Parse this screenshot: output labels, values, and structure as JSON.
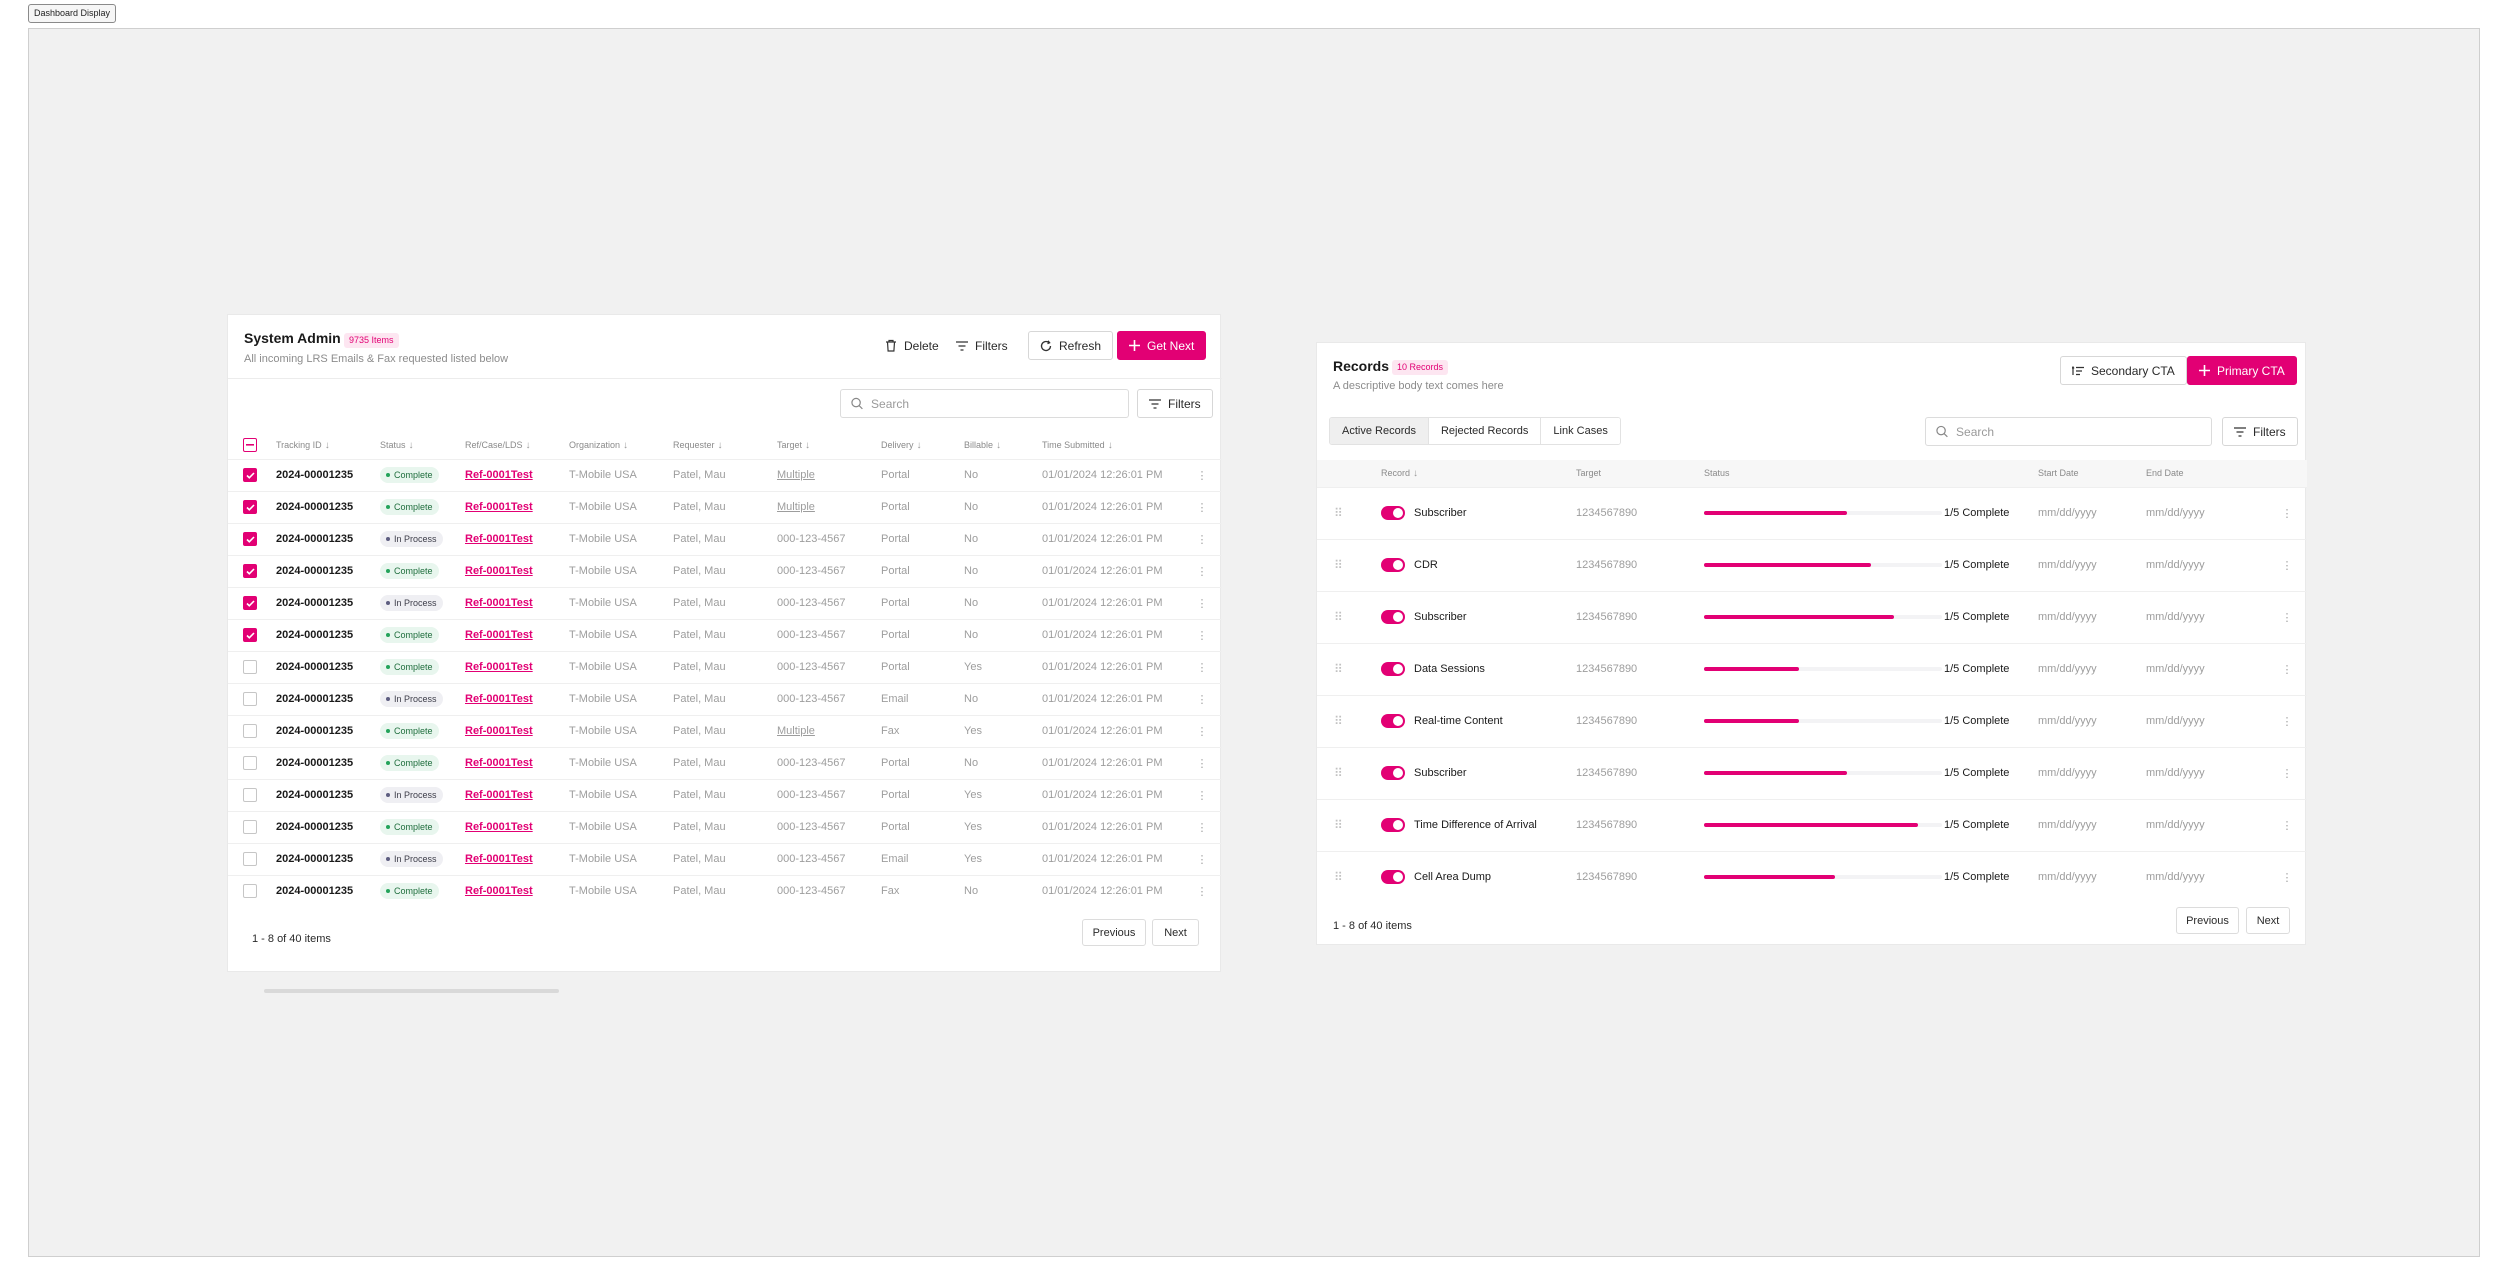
{
  "frame_label": "Dashboard Display",
  "brand_color": "#e20074",
  "system_admin": {
    "title": "System Admin",
    "count_badge": "9735 Items",
    "subtitle": "All incoming LRS Emails & Fax requested listed below",
    "actions": {
      "delete": "Delete",
      "filters": "Filters",
      "refresh": "Refresh",
      "get_next": "Get Next"
    },
    "search_placeholder": "Search",
    "filters_label": "Filters",
    "columns": [
      "Tracking ID",
      "Status",
      "Ref/Case/LDS",
      "Organization",
      "Requester",
      "Target",
      "Delivery",
      "Billable",
      "Time Submitted"
    ],
    "rows": [
      {
        "checked": true,
        "id": "2024-00001235",
        "status": "Complete",
        "ref": "Ref-0001Test",
        "org": "T-Mobile USA",
        "requester": "Patel, Mau",
        "target": "Multiple",
        "delivery": "Portal",
        "billable": "No",
        "time": "01/01/2024 12:26:01 PM"
      },
      {
        "checked": true,
        "id": "2024-00001235",
        "status": "Complete",
        "ref": "Ref-0001Test",
        "org": "T-Mobile USA",
        "requester": "Patel, Mau",
        "target": "Multiple",
        "delivery": "Portal",
        "billable": "No",
        "time": "01/01/2024 12:26:01 PM"
      },
      {
        "checked": true,
        "id": "2024-00001235",
        "status": "In Process",
        "ref": "Ref-0001Test",
        "org": "T-Mobile USA",
        "requester": "Patel, Mau",
        "target": "000-123-4567",
        "delivery": "Portal",
        "billable": "No",
        "time": "01/01/2024 12:26:01 PM"
      },
      {
        "checked": true,
        "id": "2024-00001235",
        "status": "Complete",
        "ref": "Ref-0001Test",
        "org": "T-Mobile USA",
        "requester": "Patel, Mau",
        "target": "000-123-4567",
        "delivery": "Portal",
        "billable": "No",
        "time": "01/01/2024 12:26:01 PM"
      },
      {
        "checked": true,
        "id": "2024-00001235",
        "status": "In Process",
        "ref": "Ref-0001Test",
        "org": "T-Mobile USA",
        "requester": "Patel, Mau",
        "target": "000-123-4567",
        "delivery": "Portal",
        "billable": "No",
        "time": "01/01/2024 12:26:01 PM"
      },
      {
        "checked": true,
        "id": "2024-00001235",
        "status": "Complete",
        "ref": "Ref-0001Test",
        "org": "T-Mobile USA",
        "requester": "Patel, Mau",
        "target": "000-123-4567",
        "delivery": "Portal",
        "billable": "No",
        "time": "01/01/2024 12:26:01 PM"
      },
      {
        "checked": false,
        "id": "2024-00001235",
        "status": "Complete",
        "ref": "Ref-0001Test",
        "org": "T-Mobile USA",
        "requester": "Patel, Mau",
        "target": "000-123-4567",
        "delivery": "Portal",
        "billable": "Yes",
        "time": "01/01/2024 12:26:01 PM"
      },
      {
        "checked": false,
        "id": "2024-00001235",
        "status": "In Process",
        "ref": "Ref-0001Test",
        "org": "T-Mobile USA",
        "requester": "Patel, Mau",
        "target": "000-123-4567",
        "delivery": "Email",
        "billable": "No",
        "time": "01/01/2024 12:26:01 PM"
      },
      {
        "checked": false,
        "id": "2024-00001235",
        "status": "Complete",
        "ref": "Ref-0001Test",
        "org": "T-Mobile USA",
        "requester": "Patel, Mau",
        "target": "Multiple",
        "delivery": "Fax",
        "billable": "Yes",
        "time": "01/01/2024 12:26:01 PM"
      },
      {
        "checked": false,
        "id": "2024-00001235",
        "status": "Complete",
        "ref": "Ref-0001Test",
        "org": "T-Mobile USA",
        "requester": "Patel, Mau",
        "target": "000-123-4567",
        "delivery": "Portal",
        "billable": "No",
        "time": "01/01/2024 12:26:01 PM"
      },
      {
        "checked": false,
        "id": "2024-00001235",
        "status": "In Process",
        "ref": "Ref-0001Test",
        "org": "T-Mobile USA",
        "requester": "Patel, Mau",
        "target": "000-123-4567",
        "delivery": "Portal",
        "billable": "Yes",
        "time": "01/01/2024 12:26:01 PM"
      },
      {
        "checked": false,
        "id": "2024-00001235",
        "status": "Complete",
        "ref": "Ref-0001Test",
        "org": "T-Mobile USA",
        "requester": "Patel, Mau",
        "target": "000-123-4567",
        "delivery": "Portal",
        "billable": "Yes",
        "time": "01/01/2024 12:26:01 PM"
      },
      {
        "checked": false,
        "id": "2024-00001235",
        "status": "In Process",
        "ref": "Ref-0001Test",
        "org": "T-Mobile USA",
        "requester": "Patel, Mau",
        "target": "000-123-4567",
        "delivery": "Email",
        "billable": "Yes",
        "time": "01/01/2024 12:26:01 PM"
      },
      {
        "checked": false,
        "id": "2024-00001235",
        "status": "Complete",
        "ref": "Ref-0001Test",
        "org": "T-Mobile USA",
        "requester": "Patel, Mau",
        "target": "000-123-4567",
        "delivery": "Fax",
        "billable": "No",
        "time": "01/01/2024 12:26:01 PM"
      }
    ],
    "pagination": {
      "summary": "1 - 8 of 40 items",
      "previous": "Previous",
      "next": "Next"
    }
  },
  "records": {
    "title": "Records",
    "count_badge": "10 Records",
    "subtitle": "A descriptive body text comes here",
    "secondary_cta": "Secondary CTA",
    "primary_cta": "Primary CTA",
    "tabs": [
      "Active Records",
      "Rejected Records",
      "Link Cases"
    ],
    "active_tab": "Active Records",
    "search_placeholder": "Search",
    "filters_label": "Filters",
    "columns": [
      "Record",
      "Target",
      "Status",
      "Start Date",
      "End Date"
    ],
    "rows": [
      {
        "enabled": true,
        "name": "Subscriber",
        "target": "1234567890",
        "progress": 0.6,
        "complete": "1/5 Complete",
        "start": "mm/dd/yyyy",
        "end": "mm/dd/yyyy"
      },
      {
        "enabled": true,
        "name": "CDR",
        "target": "1234567890",
        "progress": 0.7,
        "complete": "1/5 Complete",
        "start": "mm/dd/yyyy",
        "end": "mm/dd/yyyy"
      },
      {
        "enabled": true,
        "name": "Subscriber",
        "target": "1234567890",
        "progress": 0.8,
        "complete": "1/5 Complete",
        "start": "mm/dd/yyyy",
        "end": "mm/dd/yyyy"
      },
      {
        "enabled": true,
        "name": "Data Sessions",
        "target": "1234567890",
        "progress": 0.4,
        "complete": "1/5 Complete",
        "start": "mm/dd/yyyy",
        "end": "mm/dd/yyyy"
      },
      {
        "enabled": true,
        "name": "Real-time Content",
        "target": "1234567890",
        "progress": 0.4,
        "complete": "1/5 Complete",
        "start": "mm/dd/yyyy",
        "end": "mm/dd/yyyy"
      },
      {
        "enabled": true,
        "name": "Subscriber",
        "target": "1234567890",
        "progress": 0.6,
        "complete": "1/5 Complete",
        "start": "mm/dd/yyyy",
        "end": "mm/dd/yyyy"
      },
      {
        "enabled": true,
        "name": "Time Difference of Arrival",
        "target": "1234567890",
        "progress": 0.9,
        "complete": "1/5 Complete",
        "start": "mm/dd/yyyy",
        "end": "mm/dd/yyyy"
      },
      {
        "enabled": true,
        "name": "Cell Area Dump",
        "target": "1234567890",
        "progress": 0.55,
        "complete": "1/5 Complete",
        "start": "mm/dd/yyyy",
        "end": "mm/dd/yyyy"
      }
    ],
    "pagination": {
      "summary": "1 - 8 of 40 items",
      "previous": "Previous",
      "next": "Next"
    }
  }
}
